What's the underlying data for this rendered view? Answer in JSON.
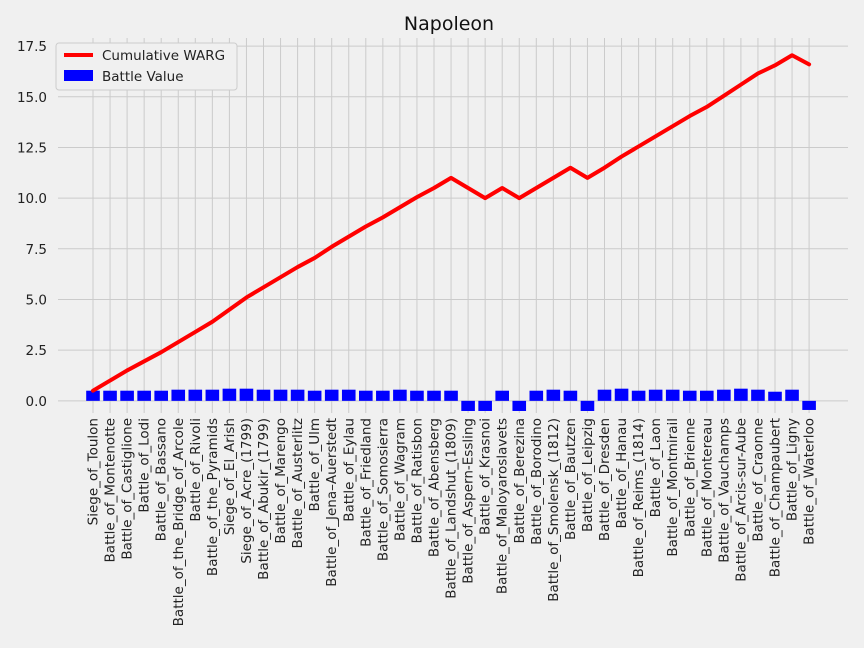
{
  "chart_data": {
    "type": "bar",
    "title": "Napoleon",
    "xlabel": "",
    "ylabel": "",
    "ylim": [
      -0.6,
      17.9
    ],
    "yticks": [
      0.0,
      2.5,
      5.0,
      7.5,
      10.0,
      12.5,
      15.0,
      17.5
    ],
    "ytick_labels": [
      "0.0",
      "2.5",
      "5.0",
      "7.5",
      "10.0",
      "12.5",
      "15.0",
      "17.5"
    ],
    "grid": true,
    "legend_position": "top-left",
    "categories": [
      "Siege_of_Toulon",
      "Battle_of_Montenotte",
      "Battle_of_Castiglione",
      "Battle_of_Lodi",
      "Battle_of_Bassano",
      "Battle_of_the_Bridge_of_Arcole",
      "Battle_of_Rivoli",
      "Battle_of_the_Pyramids",
      "Siege_of_El_Arish",
      "Siege_of_Acre_(1799)",
      "Battle_of_Abukir_(1799)",
      "Battle_of_Marengo",
      "Battle_of_Austerlitz",
      "Battle_of_Ulm",
      "Battle_of_Jena–Auerstedt",
      "Battle_of_Eylau",
      "Battle_of_Friedland",
      "Battle_of_Somosierra",
      "Battle_of_Wagram",
      "Battle_of_Ratisbon",
      "Battle_of_Abensberg",
      "Battle_of_Landshut_(1809)",
      "Battle_of_Aspern-Essling",
      "Battle_of_Krasnoi",
      "Battle_of_Maloyaroslavets",
      "Battle_of_Berezina",
      "Battle_of_Borodino",
      "Battle_of_Smolensk_(1812)",
      "Battle_of_Bautzen",
      "Battle_of_Leipzig",
      "Battle_of_Dresden",
      "Battle_of_Hanau",
      "Battle_of_Reims_(1814)",
      "Battle_of_Laon",
      "Battle_of_Montmirail",
      "Battle_of_Brienne",
      "Battle_of_Montereau",
      "Battle_of_Vauchamps",
      "Battle_of_Arcis-sur-Aube",
      "Battle_of_Craonne",
      "Battle_of_Champaubert",
      "Battle_of_Ligny",
      "Battle_of_Waterloo"
    ],
    "series": [
      {
        "name": "Battle Value",
        "kind": "bar",
        "color": "#0000ff",
        "values": [
          0.5,
          0.5,
          0.5,
          0.5,
          0.5,
          0.55,
          0.55,
          0.55,
          0.6,
          0.6,
          0.55,
          0.55,
          0.55,
          0.5,
          0.55,
          0.55,
          0.5,
          0.5,
          0.55,
          0.5,
          0.5,
          0.5,
          -0.5,
          -0.5,
          0.5,
          -0.5,
          0.5,
          0.55,
          0.5,
          -0.5,
          0.55,
          0.6,
          0.5,
          0.55,
          0.55,
          0.5,
          0.5,
          0.55,
          0.6,
          0.55,
          0.45,
          0.55,
          -0.45
        ]
      },
      {
        "name": "Cumulative WARG",
        "kind": "line",
        "color": "#ff0000",
        "values": [
          0.5,
          1.0,
          1.5,
          1.95,
          2.4,
          2.9,
          3.4,
          3.9,
          4.5,
          5.1,
          5.6,
          6.1,
          6.6,
          7.05,
          7.6,
          8.1,
          8.6,
          9.05,
          9.55,
          10.05,
          10.5,
          11.0,
          10.5,
          10.0,
          10.5,
          10.0,
          10.5,
          11.0,
          11.5,
          11.0,
          11.5,
          12.05,
          12.55,
          13.05,
          13.55,
          14.05,
          14.5,
          15.05,
          15.6,
          16.15,
          16.55,
          17.05,
          16.6
        ]
      }
    ]
  }
}
